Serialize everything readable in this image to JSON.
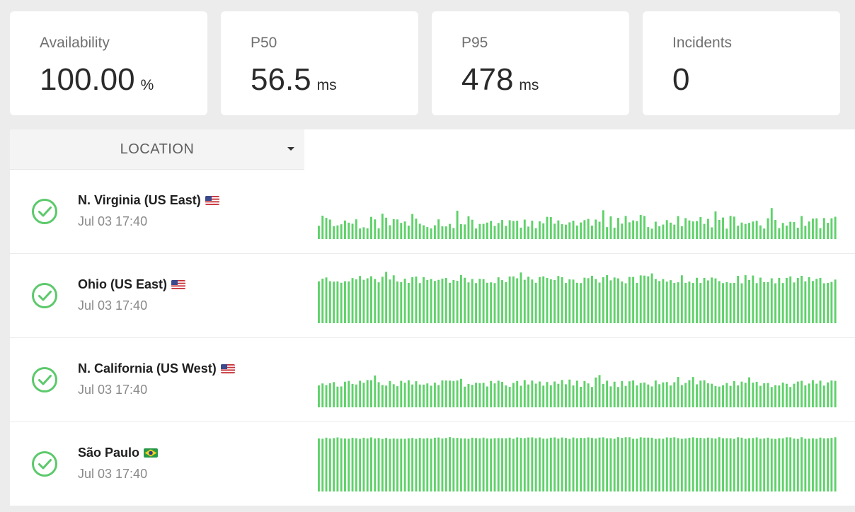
{
  "stats": [
    {
      "label": "Availability",
      "value": "100.00",
      "unit": "%"
    },
    {
      "label": "P50",
      "value": "56.5",
      "unit": "ms"
    },
    {
      "label": "P95",
      "value": "478",
      "unit": "ms"
    },
    {
      "label": "Incidents",
      "value": "0",
      "unit": ""
    }
  ],
  "location_header": {
    "label": "LOCATION",
    "icon": "caret-down-icon"
  },
  "colors": {
    "bar": "#5fd16a",
    "check": "#5cc96b"
  },
  "locations": [
    {
      "name": "N. Virginia (US East)",
      "flag": "us",
      "time": "Jul 03 17:40",
      "status": "ok",
      "bar_seed": 11,
      "bar_base": 0.28,
      "bar_var": 0.22,
      "bar_spike": 0.12
    },
    {
      "name": "Ohio (US East)",
      "flag": "us",
      "time": "Jul 03 17:40",
      "status": "ok",
      "bar_seed": 23,
      "bar_base": 0.74,
      "bar_var": 0.14,
      "bar_spike": 0.06
    },
    {
      "name": "N. California (US West)",
      "flag": "us",
      "time": "Jul 03 17:40",
      "status": "ok",
      "bar_seed": 37,
      "bar_base": 0.4,
      "bar_var": 0.12,
      "bar_spike": 0.08
    },
    {
      "name": "São Paulo",
      "flag": "br",
      "time": "Jul 03 17:40",
      "status": "ok",
      "bar_seed": 53,
      "bar_base": 0.9,
      "bar_var": 0.03,
      "bar_spike": 0.0
    }
  ]
}
